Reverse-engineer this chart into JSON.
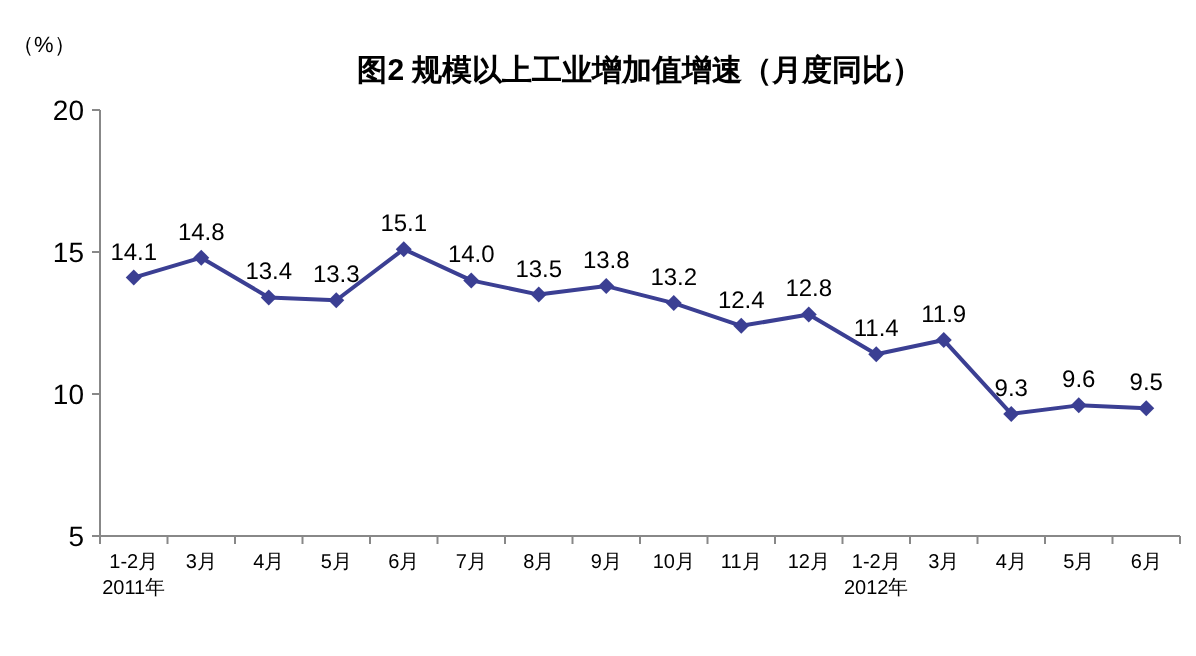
{
  "chart_data": {
    "type": "line",
    "title": "图2  规模以上工业增加值增速（月度同比）",
    "ylabel": "（%）",
    "categories": [
      "1-2月\n2011年",
      "3月",
      "4月",
      "5月",
      "6月",
      "7月",
      "8月",
      "9月",
      "10月",
      "11月",
      "12月",
      "1-2月\n2012年",
      "3月",
      "4月",
      "5月",
      "6月"
    ],
    "series": [
      {
        "color": "#3b3f93",
        "values": [
          14.1,
          14.8,
          13.4,
          13.3,
          15.1,
          14.0,
          13.5,
          13.8,
          13.2,
          12.4,
          12.8,
          11.4,
          11.9,
          9.3,
          9.6,
          9.5
        ],
        "value_labels": [
          "14.1",
          "14.8",
          "13.4",
          "13.3",
          "15.1",
          "14.0",
          "13.5",
          "13.8",
          "13.2",
          "12.4",
          "12.8",
          "11.4",
          "11.9",
          "9.3",
          "9.6",
          "9.5"
        ]
      }
    ],
    "ylim": [
      5,
      20
    ],
    "yticks": [
      5,
      10,
      15,
      20
    ],
    "marker": "diamond"
  }
}
